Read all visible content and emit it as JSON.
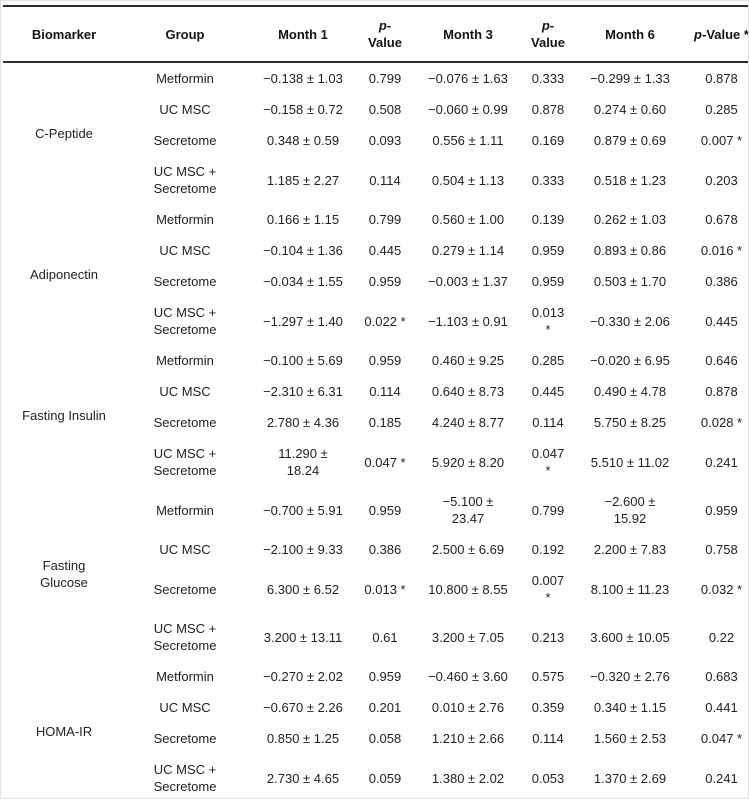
{
  "table": {
    "headers": [
      "Biomarker",
      "Group",
      "Month 1",
      "p-Value",
      "Month 3",
      "p-Value",
      "Month 6",
      "p-Value *"
    ],
    "groups": [
      {
        "biomarker": "C-Peptide",
        "rows": [
          {
            "group": "Metformin",
            "m1": "−0.138 ± 1.03",
            "p1": "0.799",
            "m3": "−0.076 ± 1.63",
            "p3": "0.333",
            "m6": "−0.299 ± 1.33",
            "p6": "0.878"
          },
          {
            "group": "UC MSC",
            "m1": "−0.158 ± 0.72",
            "p1": "0.508",
            "m3": "−0.060 ± 0.99",
            "p3": "0.878",
            "m6": "0.274 ± 0.60",
            "p6": "0.285"
          },
          {
            "group": "Secretome",
            "m1": "0.348 ± 0.59",
            "p1": "0.093",
            "m3": "0.556 ± 1.11",
            "p3": "0.169",
            "m6": "0.879 ± 0.69",
            "p6": "0.007 *"
          },
          {
            "group": "UC MSC +\nSecretome",
            "m1": "1.185 ± 2.27",
            "p1": "0.114",
            "m3": "0.504 ± 1.13",
            "p3": "0.333",
            "m6": "0.518 ± 1.23",
            "p6": "0.203"
          }
        ]
      },
      {
        "biomarker": "Adiponectin",
        "rows": [
          {
            "group": "Metformin",
            "m1": "0.166 ± 1.15",
            "p1": "0.799",
            "m3": "0.560 ± 1.00",
            "p3": "0.139",
            "m6": "0.262 ± 1.03",
            "p6": "0.678"
          },
          {
            "group": "UC MSC",
            "m1": "−0.104 ± 1.36",
            "p1": "0.445",
            "m3": "0.279 ± 1.14",
            "p3": "0.959",
            "m6": "0.893 ± 0.86",
            "p6": "0.016 *"
          },
          {
            "group": "Secretome",
            "m1": "−0.034 ± 1.55",
            "p1": "0.959",
            "m3": "−0.003 ± 1.37",
            "p3": "0.959",
            "m6": "0.503 ± 1.70",
            "p6": "0.386"
          },
          {
            "group": "UC MSC +\nSecretome",
            "m1": "−1.297 ± 1.40",
            "p1": "0.022 *",
            "m3": "−1.103 ± 0.91",
            "p3": "0.013 *",
            "m6": "−0.330 ± 2.06",
            "p6": "0.445"
          }
        ]
      },
      {
        "biomarker": "Fasting Insulin",
        "rows": [
          {
            "group": "Metformin",
            "m1": "−0.100 ± 5.69",
            "p1": "0.959",
            "m3": "0.460 ± 9.25",
            "p3": "0.285",
            "m6": "−0.020 ± 6.95",
            "p6": "0.646"
          },
          {
            "group": "UC MSC",
            "m1": "−2.310 ± 6.31",
            "p1": "0.114",
            "m3": "0.640 ± 8.73",
            "p3": "0.445",
            "m6": "0.490 ± 4.78",
            "p6": "0.878"
          },
          {
            "group": "Secretome",
            "m1": "2.780 ± 4.36",
            "p1": "0.185",
            "m3": "4.240 ± 8.77",
            "p3": "0.114",
            "m6": "5.750 ± 8.25",
            "p6": "0.028 *"
          },
          {
            "group": "UC MSC +\nSecretome",
            "m1": "11.290 ±\n18.24",
            "p1": "0.047 *",
            "m3": "5.920 ± 8.20",
            "p3": "0.047 *",
            "m6": "5.510 ± 11.02",
            "p6": "0.241"
          }
        ]
      },
      {
        "biomarker": "Fasting\nGlucose",
        "rows": [
          {
            "group": "Metformin",
            "m1": "−0.700 ± 5.91",
            "p1": "0.959",
            "m3": "−5.100 ±\n23.47",
            "p3": "0.799",
            "m6": "−2.600 ±\n15.92",
            "p6": "0.959"
          },
          {
            "group": "UC MSC",
            "m1": "−2.100 ± 9.33",
            "p1": "0.386",
            "m3": "2.500 ± 6.69",
            "p3": "0.192",
            "m6": "2.200 ± 7.83",
            "p6": "0.758"
          },
          {
            "group": "Secretome",
            "m1": "6.300 ± 6.52",
            "p1": "0.013 *",
            "m3": "10.800 ± 8.55",
            "p3": "0.007 *",
            "m6": "8.100 ± 11.23",
            "p6": "0.032 *"
          },
          {
            "group": "UC MSC +\nSecretome",
            "m1": "3.200 ± 13.11",
            "p1": "0.61",
            "m3": "3.200 ± 7.05",
            "p3": "0.213",
            "m6": "3.600 ± 10.05",
            "p6": "0.22"
          }
        ]
      },
      {
        "biomarker": "HOMA-IR",
        "rows": [
          {
            "group": "Metformin",
            "m1": "−0.270 ± 2.02",
            "p1": "0.959",
            "m3": "−0.460 ± 3.60",
            "p3": "0.575",
            "m6": "−0.320 ± 2.76",
            "p6": "0.683"
          },
          {
            "group": "UC MSC",
            "m1": "−0.670 ± 2.26",
            "p1": "0.201",
            "m3": "0.010 ± 2.76",
            "p3": "0.359",
            "m6": "0.340 ± 1.15",
            "p6": "0.441"
          },
          {
            "group": "Secretome",
            "m1": "0.850 ± 1.25",
            "p1": "0.058",
            "m3": "1.210 ± 2.66",
            "p3": "0.114",
            "m6": "1.560 ± 2.53",
            "p6": "0.047 *"
          },
          {
            "group": "UC MSC +\nSecretome",
            "m1": "2.730 ± 4.65",
            "p1": "0.059",
            "m3": "1.380 ± 2.02",
            "p3": "0.053",
            "m6": "1.370 ± 2.69",
            "p6": "0.241"
          }
        ]
      }
    ]
  },
  "colors": {
    "rule": "#2e2e2e",
    "body_text": "#212121",
    "header_text": "#141414",
    "outer_border": "#e2e2e2",
    "background": "#ffffff"
  }
}
